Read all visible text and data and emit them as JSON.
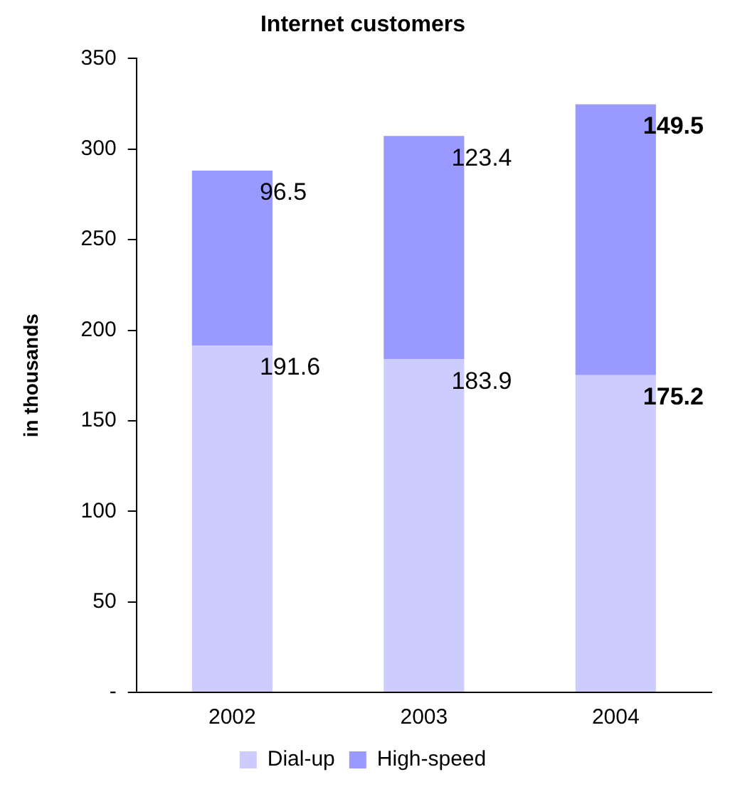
{
  "chart_data": {
    "type": "bar",
    "title": "Internet customers",
    "ylabel": "in thousands",
    "categories": [
      "2002",
      "2003",
      "2004"
    ],
    "stacked": true,
    "series": [
      {
        "name": "Dial-up",
        "color": "#ccccff",
        "values": [
          191.6,
          183.9,
          175.2
        ],
        "value_labels": [
          "191.6",
          "183.9",
          "175.2"
        ]
      },
      {
        "name": "High-speed",
        "color": "#9999ff",
        "values": [
          96.5,
          123.4,
          149.5
        ],
        "value_labels": [
          "96.5",
          "123.4",
          "149.5"
        ]
      }
    ],
    "ylim": [
      0,
      350
    ],
    "yticks": [
      {
        "value": 0,
        "label": "-"
      },
      50,
      100,
      150,
      200,
      250,
      300,
      350
    ],
    "grid": false,
    "legend": "bottom"
  }
}
